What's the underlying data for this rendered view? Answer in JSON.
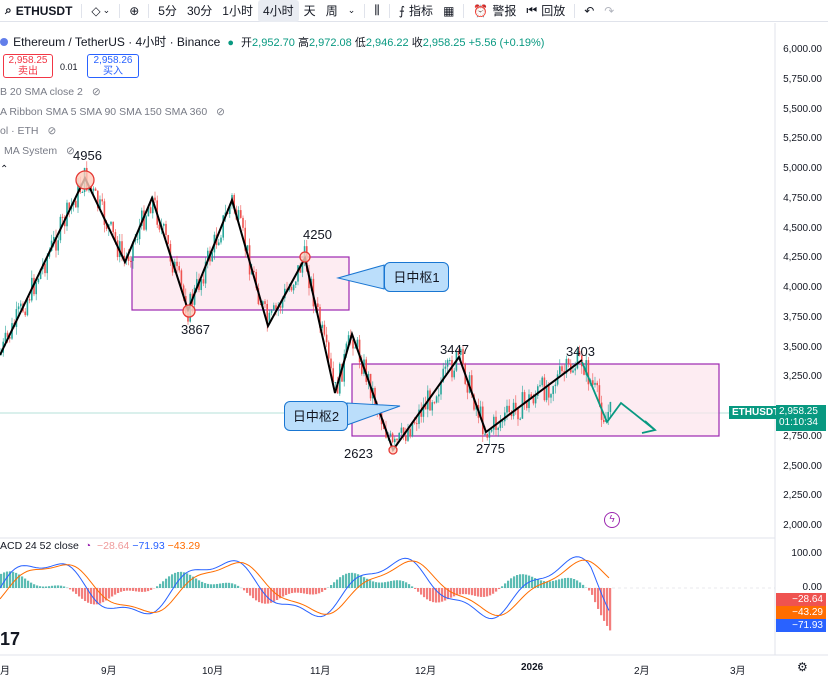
{
  "toolbar": {
    "symbol": "ETHUSDT",
    "timeframes": [
      "5分",
      "30分",
      "1小时",
      "4小时",
      "天",
      "周"
    ],
    "active_timeframe": "4小时",
    "indicators_label": "指标",
    "alert_label": "警报",
    "replay_label": "回放"
  },
  "legend": {
    "title": "Ethereum / TetherUS · 4小时 · Binance",
    "open_label": "开",
    "open": "2,952.70",
    "high_label": "高",
    "high": "2,972.08",
    "low_label": "低",
    "low": "2,946.22",
    "close_label": "收",
    "close": "2,958.25",
    "change": "+5.56 (+0.19%)",
    "sell_price": "2,958.25",
    "sell_label": "卖出",
    "spread": "0.01",
    "buy_price": "2,958.26",
    "buy_label": "买入",
    "indicators": [
      "B 20 SMA close 2",
      "A Ribbon SMA 5 SMA 90 SMA 150 SMA 360",
      "ol · ETH",
      "MA System"
    ]
  },
  "annotations": {
    "peak_4956": "4956",
    "low_3867": "3867",
    "peak_4250": "4250",
    "peak_3447": "3447",
    "peak_3403": "3403",
    "low_2623": "2623",
    "low_2775": "2775",
    "zone1_label": "日中枢1",
    "zone2_label": "日中枢2"
  },
  "price_axis": {
    "ticks": [
      "6,000.00",
      "5,750.00",
      "5,500.00",
      "5,250.00",
      "5,000.00",
      "4,750.00",
      "4,500.00",
      "4,250.00",
      "4,000.00",
      "3,750.00",
      "3,500.00",
      "3,250.00",
      "2,750.00",
      "2,500.00",
      "2,250.00",
      "2,000.00"
    ],
    "current_symbol": "ETHUSDT",
    "current_price": "2,958.25",
    "countdown": "01:10:34"
  },
  "macd": {
    "label": "ACD 24 52 close",
    "v1": "−28.64",
    "v2": "−71.93",
    "v3": "−43.29",
    "axis": [
      "100.00",
      "0.00"
    ],
    "box1": "−28.64",
    "box2": "−43.29",
    "box3": "−71.93"
  },
  "time_axis": [
    "月",
    "9月",
    "10月",
    "11月",
    "12月",
    "2026",
    "2月",
    "3月"
  ],
  "colors": {
    "up": "#26a69a",
    "down": "#ef5350",
    "zone_border": "#9c27b0",
    "zone_fill": "#fce4ec",
    "callout_fill": "#bbdefb",
    "macd_line": "#2962ff",
    "signal_line": "#ff6d00",
    "current_price": "#089981"
  }
}
